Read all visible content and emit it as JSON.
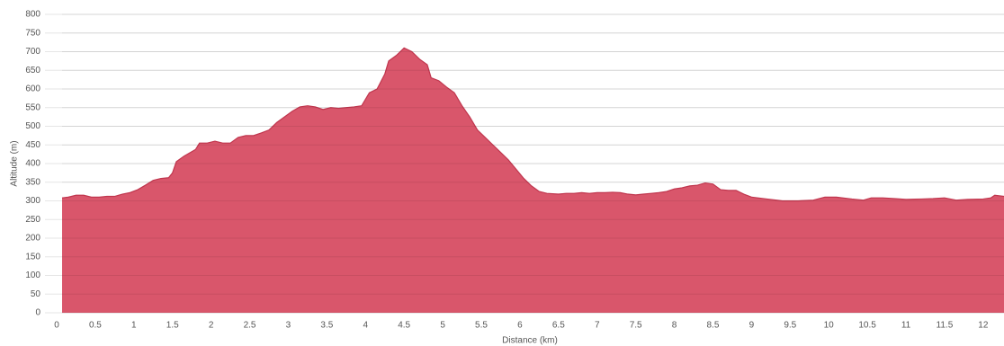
{
  "chart_data": {
    "type": "area",
    "xlabel": "Distance (km)",
    "ylabel": "Altitude (m)",
    "color": "#d9566b",
    "line_color": "#c0364e",
    "grid": true,
    "xlim": [
      0,
      12.27
    ],
    "ylim": [
      0,
      800
    ],
    "xticks": [
      0,
      0.5,
      1,
      1.5,
      2,
      2.5,
      3,
      3.5,
      4,
      4.5,
      5,
      5.5,
      6,
      6.5,
      7,
      7.5,
      8,
      8.5,
      9,
      9.5,
      10,
      10.5,
      11,
      11.5,
      12
    ],
    "yticks": [
      0,
      50,
      100,
      150,
      200,
      250,
      300,
      350,
      400,
      450,
      500,
      550,
      600,
      650,
      700,
      750,
      800
    ],
    "x": [
      0.07,
      0.15,
      0.25,
      0.35,
      0.45,
      0.55,
      0.65,
      0.75,
      0.85,
      0.95,
      1.05,
      1.15,
      1.25,
      1.35,
      1.45,
      1.5,
      1.55,
      1.65,
      1.75,
      1.8,
      1.85,
      1.95,
      2.05,
      2.15,
      2.25,
      2.35,
      2.45,
      2.55,
      2.65,
      2.75,
      2.85,
      2.95,
      3.05,
      3.15,
      3.25,
      3.35,
      3.45,
      3.55,
      3.65,
      3.75,
      3.85,
      3.95,
      4.05,
      4.15,
      4.25,
      4.3,
      4.4,
      4.5,
      4.6,
      4.7,
      4.8,
      4.85,
      4.95,
      5.05,
      5.15,
      5.25,
      5.35,
      5.45,
      5.55,
      5.65,
      5.75,
      5.85,
      5.95,
      6.05,
      6.15,
      6.25,
      6.35,
      6.5,
      6.6,
      6.7,
      6.8,
      6.9,
      7.0,
      7.1,
      7.2,
      7.3,
      7.4,
      7.5,
      7.6,
      7.7,
      7.8,
      7.9,
      8.0,
      8.1,
      8.2,
      8.3,
      8.4,
      8.5,
      8.6,
      8.7,
      8.8,
      8.9,
      9.0,
      9.2,
      9.4,
      9.6,
      9.8,
      9.95,
      10.1,
      10.3,
      10.45,
      10.55,
      10.7,
      10.85,
      11.0,
      11.2,
      11.35,
      11.5,
      11.65,
      11.8,
      12.0,
      12.1,
      12.15,
      12.27
    ],
    "values": [
      308,
      310,
      315,
      315,
      310,
      310,
      312,
      312,
      318,
      322,
      330,
      342,
      355,
      360,
      362,
      375,
      405,
      420,
      432,
      438,
      455,
      455,
      460,
      455,
      455,
      470,
      475,
      475,
      482,
      490,
      510,
      525,
      540,
      552,
      555,
      552,
      545,
      550,
      548,
      550,
      552,
      555,
      590,
      600,
      640,
      675,
      690,
      710,
      700,
      680,
      665,
      630,
      622,
      605,
      590,
      555,
      525,
      490,
      470,
      450,
      430,
      410,
      385,
      360,
      340,
      325,
      320,
      318,
      320,
      320,
      322,
      320,
      322,
      322,
      323,
      322,
      318,
      316,
      318,
      320,
      322,
      325,
      332,
      335,
      340,
      342,
      348,
      345,
      330,
      328,
      328,
      318,
      310,
      305,
      300,
      300,
      302,
      310,
      310,
      305,
      302,
      308,
      308,
      306,
      304,
      305,
      306,
      308,
      302,
      304,
      305,
      308,
      315,
      312
    ]
  }
}
